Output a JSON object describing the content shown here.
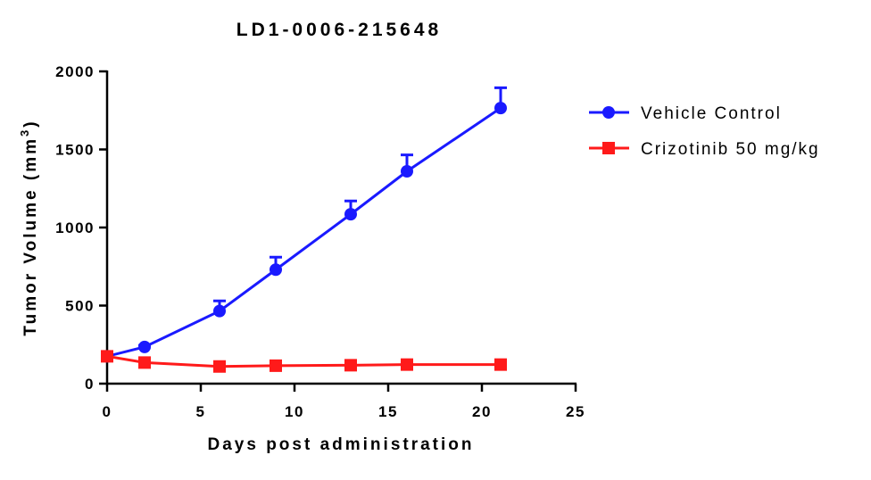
{
  "chart_data": {
    "type": "line",
    "title": "LD1-0006-215648",
    "xlabel": "Days post administration",
    "ylabel_main": "Tumor Volume (mm",
    "ylabel_sup": "3",
    "ylabel_end": ")",
    "xlim": [
      0,
      25
    ],
    "ylim": [
      0,
      2000
    ],
    "xticks": [
      0,
      5,
      10,
      15,
      20,
      25
    ],
    "yticks": [
      0,
      500,
      1000,
      1500,
      2000
    ],
    "grid": false,
    "legend_position": "right",
    "series": [
      {
        "name": "Vehicle Control",
        "color": "#1a1aff",
        "marker": "circle",
        "x": [
          0,
          2,
          6,
          9,
          13,
          16,
          21
        ],
        "y": [
          175,
          235,
          465,
          730,
          1085,
          1360,
          1765
        ],
        "error": [
          0,
          10,
          65,
          80,
          85,
          105,
          130
        ]
      },
      {
        "name": "Crizotinib 50 mg/kg",
        "color": "#ff1a1a",
        "marker": "square",
        "x": [
          0,
          2,
          6,
          9,
          13,
          16,
          21
        ],
        "y": [
          175,
          135,
          110,
          115,
          118,
          122,
          122
        ],
        "error": [
          0,
          0,
          0,
          0,
          0,
          0,
          0
        ]
      }
    ]
  }
}
